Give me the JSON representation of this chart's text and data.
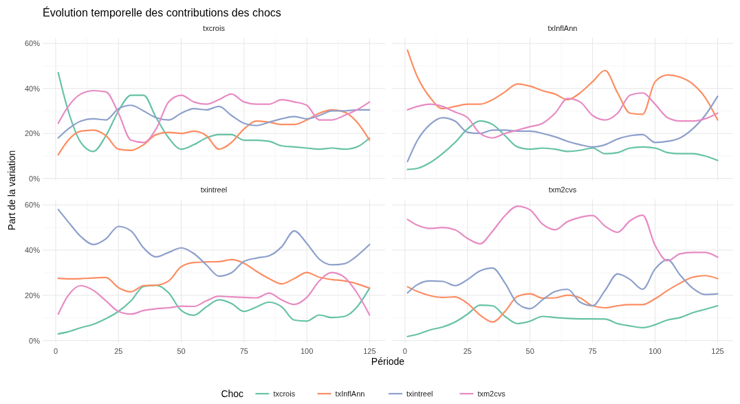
{
  "chart_data": [
    {
      "type": "line",
      "title": "txcrois",
      "annotations": [
        "Évolution temporelle des contributions des chocs"
      ],
      "ylabel": "Part de la variation",
      "legend": "bottom",
      "legend_title": "Choc",
      "grid": true,
      "tick_labels": "y",
      "xlim": [
        -5.2,
        131.2
      ],
      "ylim": [
        -1,
        62.5
      ],
      "xticks": [
        0,
        25,
        50,
        75,
        100,
        125
      ],
      "yticks": [
        {
          "value": 0,
          "label": "0%"
        },
        {
          "value": 20,
          "label": "20%"
        },
        {
          "value": 40,
          "label": "40%"
        },
        {
          "value": 60,
          "label": "60%"
        }
      ],
      "x": [
        1,
        5,
        10,
        15,
        20,
        25,
        30,
        35,
        40,
        45,
        50,
        55,
        60,
        65,
        70,
        75,
        80,
        85,
        90,
        95,
        100,
        105,
        110,
        115,
        120,
        125
      ],
      "series": [
        {
          "name": "txcrois",
          "color": "#66c2a5",
          "values": [
            47,
            30,
            16,
            12,
            19,
            30,
            37,
            37,
            27,
            18,
            13,
            15,
            18,
            19.5,
            19.5,
            17,
            17,
            16.5,
            14.5,
            14,
            13.5,
            13,
            13.5,
            13,
            14,
            18
          ]
        },
        {
          "name": "txInflAnn",
          "color": "#fc8d62",
          "values": [
            10.5,
            17,
            21,
            21.5,
            19,
            13,
            12.5,
            15,
            19.5,
            20.5,
            20,
            21,
            19,
            13,
            16,
            22,
            25.5,
            25,
            24,
            24,
            26,
            29,
            30.5,
            29.5,
            25,
            17
          ]
        },
        {
          "name": "txintreel",
          "color": "#8da0cb",
          "values": [
            18,
            22,
            25.5,
            26.5,
            26,
            31,
            32.5,
            30,
            27,
            26,
            29,
            31,
            30.5,
            32,
            28,
            24.5,
            23.5,
            25,
            26.5,
            27.5,
            26.5,
            28,
            30,
            30,
            30.5,
            30.5
          ]
        },
        {
          "name": "txm2cvs",
          "color": "#e78ac3",
          "values": [
            24.5,
            32,
            37.5,
            39,
            38.5,
            29,
            17,
            16,
            22,
            34,
            37,
            34,
            33,
            35,
            37.5,
            34,
            33,
            33,
            35,
            34,
            32.5,
            26,
            26,
            28,
            30.5,
            34
          ]
        }
      ]
    },
    {
      "type": "line",
      "title": "txInflAnn",
      "grid": true,
      "tick_labels": false,
      "xlim": [
        -5.2,
        131.2
      ],
      "ylim": [
        -1,
        62.5
      ],
      "xticks": [
        0,
        25,
        50,
        75,
        100,
        125
      ],
      "yticks": [
        0,
        20,
        40,
        60
      ],
      "x": [
        1,
        5,
        10,
        15,
        20,
        25,
        30,
        35,
        40,
        45,
        50,
        55,
        60,
        65,
        70,
        75,
        80,
        85,
        90,
        95,
        100,
        105,
        110,
        115,
        120,
        125
      ],
      "series": [
        {
          "color": "#66c2a5",
          "values": [
            4,
            4.5,
            7,
            11,
            16,
            22,
            25.5,
            24,
            19,
            14,
            13,
            13.5,
            13,
            12,
            12.5,
            13.5,
            11,
            11.5,
            13.5,
            14,
            13.5,
            11.5,
            11,
            11,
            10,
            8
          ]
        },
        {
          "color": "#fc8d62",
          "values": [
            57,
            45,
            36,
            31,
            32,
            33,
            33,
            35,
            38.5,
            42,
            41,
            39,
            37.5,
            35,
            38,
            43,
            48,
            38,
            29,
            28.5,
            43,
            46,
            45,
            42,
            36,
            26
          ]
        },
        {
          "color": "#8da0cb",
          "values": [
            7.5,
            17,
            24,
            27,
            25.5,
            20.5,
            20,
            21.5,
            21.5,
            21,
            21,
            20,
            18.5,
            16.5,
            15,
            14,
            15,
            17.5,
            19,
            19.5,
            16,
            16.5,
            18,
            22,
            28,
            36.5
          ]
        },
        {
          "color": "#e78ac3",
          "values": [
            30.5,
            32,
            33,
            32,
            29.5,
            27,
            20,
            18,
            20,
            21.5,
            23,
            24.5,
            29,
            35.5,
            34,
            28,
            26,
            29,
            37,
            38,
            33,
            27,
            25.5,
            25.5,
            26.5,
            29
          ]
        }
      ]
    },
    {
      "type": "line",
      "title": "txintreel",
      "xlabel": "Période",
      "grid": true,
      "xlim": [
        -5.2,
        131.2
      ],
      "ylim": [
        -1,
        62.5
      ],
      "xticks": [
        0,
        25,
        50,
        75,
        100,
        125
      ],
      "yticks": [
        {
          "value": 0,
          "label": "0%"
        },
        {
          "value": 20,
          "label": "20%"
        },
        {
          "value": 40,
          "label": "40%"
        },
        {
          "value": 60,
          "label": "60%"
        }
      ],
      "x": [
        1,
        5,
        10,
        15,
        20,
        25,
        30,
        35,
        40,
        45,
        50,
        55,
        60,
        65,
        70,
        75,
        80,
        85,
        90,
        95,
        100,
        105,
        110,
        115,
        120,
        125
      ],
      "series": [
        {
          "color": "#66c2a5",
          "values": [
            3,
            3.9,
            5.7,
            7.2,
            9.7,
            12.9,
            17.6,
            23.9,
            24.5,
            21.1,
            13.3,
            11.2,
            14.9,
            18,
            16.4,
            12.9,
            14.9,
            17,
            14.9,
            9.1,
            8.6,
            11.3,
            10.2,
            10.7,
            14.9,
            23.2
          ]
        },
        {
          "color": "#fc8d62",
          "values": [
            27.5,
            27.3,
            27.4,
            27.7,
            27.9,
            23.4,
            21.6,
            24.3,
            24.5,
            26.4,
            32.7,
            34.5,
            34.8,
            34.9,
            35.8,
            34.2,
            30.6,
            27.4,
            25.1,
            27.4,
            30.1,
            28,
            27,
            26.4,
            25.1,
            23.2
          ]
        },
        {
          "color": "#8da0cb",
          "values": [
            58,
            52.5,
            46,
            42.5,
            45,
            50.5,
            48.5,
            41,
            37,
            39,
            41,
            38.5,
            33.5,
            28.5,
            30,
            35,
            36.5,
            37.5,
            41.5,
            48.5,
            43,
            36,
            33.5,
            34,
            37.5,
            42.5
          ]
        },
        {
          "color": "#e78ac3",
          "values": [
            11.7,
            20,
            24.3,
            22.2,
            17.6,
            12.9,
            11.7,
            13.3,
            14.1,
            14.5,
            15.2,
            15.1,
            17.6,
            19.6,
            19.3,
            19.1,
            18.9,
            21,
            18,
            16,
            19.1,
            26.4,
            30.1,
            28,
            21.1,
            11.3
          ]
        }
      ]
    },
    {
      "type": "line",
      "title": "txm2cvs",
      "grid": true,
      "tick_labels": "x",
      "xlim": [
        -5.2,
        131.2
      ],
      "ylim": [
        -1,
        62.5
      ],
      "xticks": [
        0,
        25,
        50,
        75,
        100,
        125
      ],
      "yticks": [
        0,
        20,
        40,
        60
      ],
      "x": [
        1,
        5,
        10,
        15,
        20,
        25,
        30,
        35,
        40,
        45,
        50,
        55,
        60,
        65,
        70,
        75,
        80,
        85,
        90,
        95,
        100,
        105,
        110,
        115,
        120,
        125
      ],
      "series": [
        {
          "color": "#66c2a5",
          "values": [
            1.8,
            2.8,
            4.7,
            6,
            8.2,
            11.7,
            15.7,
            15.4,
            10.7,
            7.5,
            8.6,
            10.7,
            10.2,
            9.8,
            9.6,
            9.6,
            9.5,
            7.5,
            6.5,
            5.7,
            7,
            9.1,
            10.2,
            12.3,
            13.8,
            15.4
          ]
        },
        {
          "color": "#fc8d62",
          "values": [
            23.8,
            21.7,
            19.9,
            19.1,
            19.3,
            16.4,
            11.3,
            8.2,
            12.9,
            19.6,
            20.7,
            18.8,
            18.9,
            20.1,
            18.9,
            15.4,
            14.5,
            15.4,
            15.9,
            15.9,
            18.5,
            22.2,
            25.4,
            28,
            28.7,
            27.4
          ]
        },
        {
          "color": "#8da0cb",
          "values": [
            21.1,
            24.8,
            26.4,
            26.2,
            24.3,
            27,
            30.8,
            32.1,
            25.4,
            16.4,
            14.1,
            18,
            21.7,
            22.7,
            17,
            15.4,
            22.2,
            29.5,
            27,
            22.7,
            31.7,
            35.8,
            29,
            23.2,
            20.4,
            20.7
          ]
        },
        {
          "color": "#e78ac3",
          "values": [
            53.6,
            51,
            49.6,
            50,
            49,
            45.2,
            42.8,
            48.4,
            55.3,
            59.4,
            57.8,
            51.5,
            49,
            52.6,
            54.5,
            55.3,
            50.6,
            47.9,
            53,
            55.5,
            42.1,
            35.3,
            38.4,
            39,
            39,
            36.9
          ]
        }
      ]
    }
  ]
}
